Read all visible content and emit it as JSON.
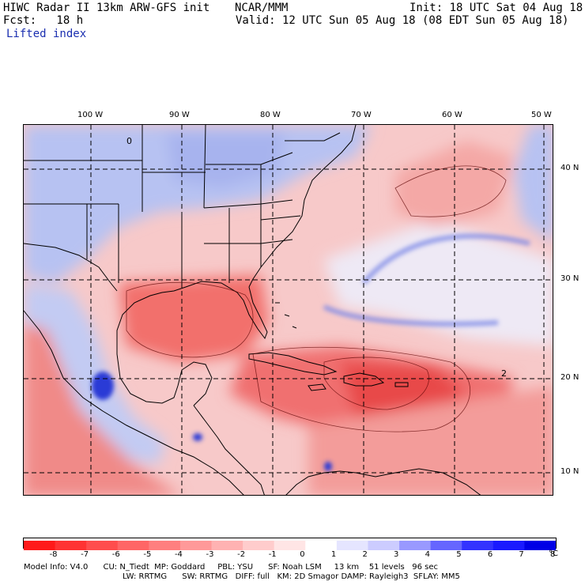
{
  "header": {
    "left_line1": "HIWC Radar II 13km ARW-GFS init",
    "left_line2": "Fcst:   18 h",
    "center": "NCAR/MMM",
    "init": "Init: 18 UTC Sat 04 Aug 18",
    "valid": "Valid: 12 UTC Sun 05 Aug 18 (08 EDT Sun 05 Aug 18)",
    "field": "Lifted index"
  },
  "map": {
    "lon_labels": [
      "100 W",
      "90 W",
      "80 W",
      "70 W",
      "60 W",
      "50 W"
    ],
    "lat_labels": [
      "40 N",
      "30 N",
      "20 N",
      "10 N"
    ],
    "contour_labels": [
      "2",
      "0"
    ]
  },
  "colorbar": {
    "tick_labels": [
      "-8",
      "-7",
      "-6",
      "-5",
      "-4",
      "-3",
      "-2",
      "-1",
      "0",
      "1",
      "2",
      "3",
      "4",
      "5",
      "6",
      "7",
      "8"
    ],
    "unit": "°C",
    "colors": [
      "#ff1a1a",
      "#ff3333",
      "#ff4d4d",
      "#ff6666",
      "#ff7f7f",
      "#ff9999",
      "#ffb2b2",
      "#ffcccc",
      "#ffe5e5",
      "#ffffff",
      "#e5e5ff",
      "#ccccff",
      "#9999ff",
      "#6666ff",
      "#3333ff",
      "#1a1aff",
      "#0000e6"
    ]
  },
  "footer": {
    "line1": "Model Info: V4.0      CU: N_Tiedt  MP: Goddard     PBL: YSU      SF: Noah LSM     13 km    51 levels   96 sec",
    "line2": "LW: RRTMG      SW: RRTMG   DIFF: full   KM: 2D Smagor DAMP: Rayleigh3  SFLAY: MM5"
  }
}
